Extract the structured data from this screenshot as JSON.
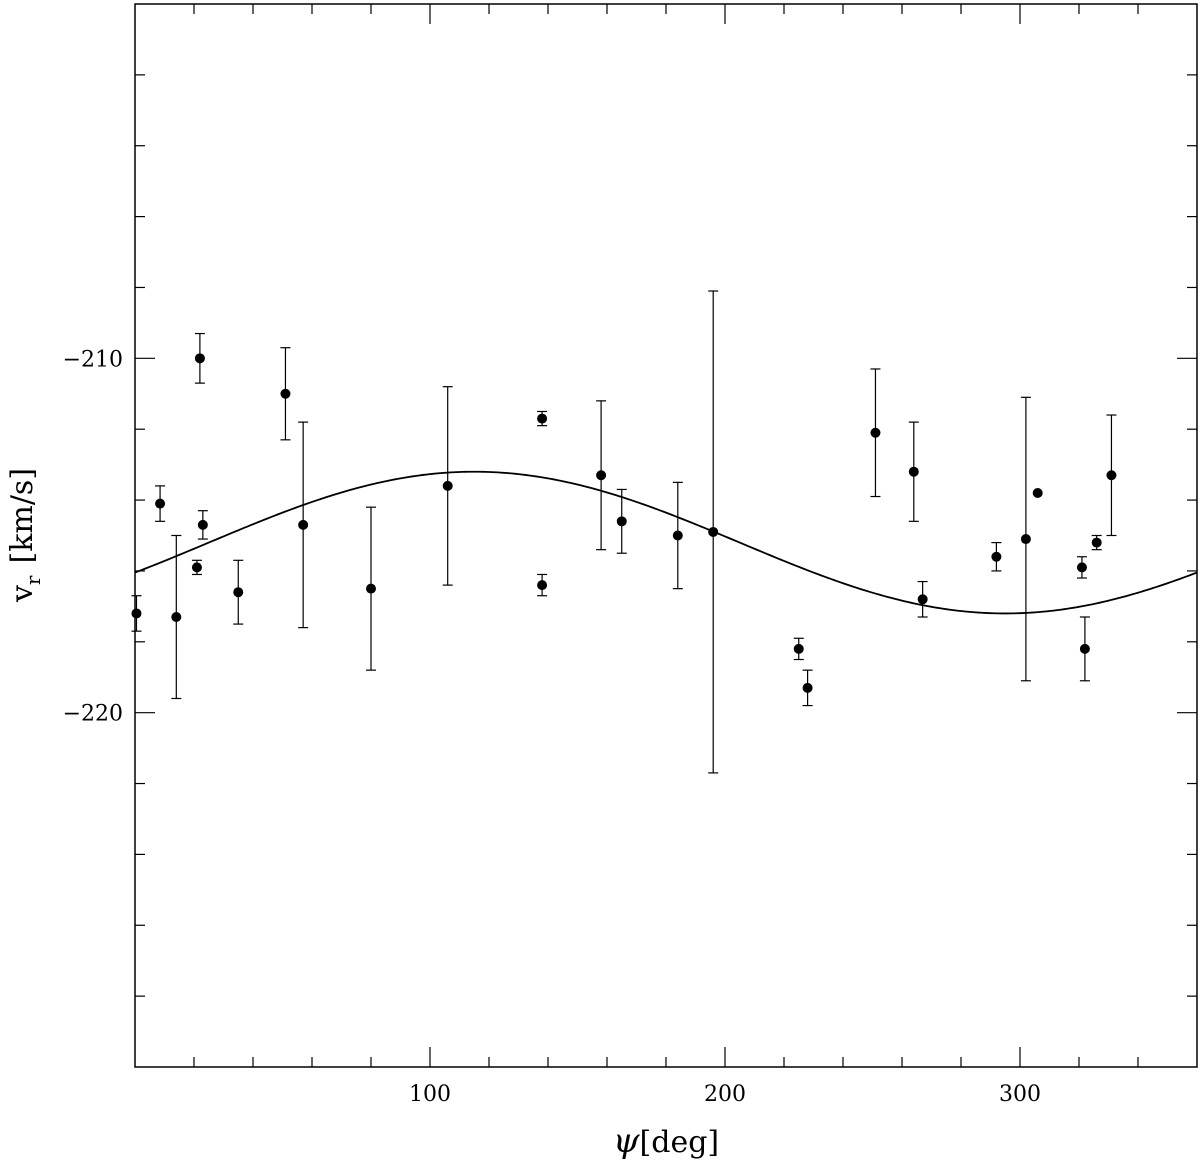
{
  "chart_data": {
    "type": "scatter",
    "title": "",
    "xlabel": "ψ[deg]",
    "ylabel": "v_r [km/s]",
    "ylabel_main": "v",
    "ylabel_sub": "r",
    "ylabel_unit": "[km/s]",
    "xlabel_symbol": "ψ",
    "xlabel_unit": "[deg]",
    "xlim": [
      0,
      360
    ],
    "ylim": [
      -230,
      -200
    ],
    "x_major_ticks": [
      100,
      200,
      300
    ],
    "x_minor_step": 20,
    "y_major_ticks": [
      -210,
      -220
    ],
    "y_minor_step": 2,
    "x_tick_labels": [
      "100",
      "200",
      "300"
    ],
    "y_tick_labels": [
      "−210",
      "−220"
    ],
    "grid": false,
    "series": [
      {
        "kind": "points_with_errorbars",
        "points": [
          {
            "x": 0.5,
            "y": -217.2,
            "err": 0.5
          },
          {
            "x": 8.5,
            "y": -214.1,
            "err": 0.5
          },
          {
            "x": 14,
            "y": -217.3,
            "err": 2.3
          },
          {
            "x": 21,
            "y": -215.9,
            "err": 0.2
          },
          {
            "x": 22,
            "y": -210.0,
            "err": 0.7
          },
          {
            "x": 23,
            "y": -214.7,
            "err": 0.4
          },
          {
            "x": 35,
            "y": -216.6,
            "err": 0.9
          },
          {
            "x": 51,
            "y": -211.0,
            "err": 1.3
          },
          {
            "x": 57,
            "y": -214.7,
            "err": 2.9
          },
          {
            "x": 80,
            "y": -216.5,
            "err": 2.3
          },
          {
            "x": 106,
            "y": -213.6,
            "err": 2.8
          },
          {
            "x": 138,
            "y": -211.7,
            "err": 0.2
          },
          {
            "x": 138,
            "y": -216.4,
            "err": 0.3
          },
          {
            "x": 158,
            "y": -213.3,
            "err": 2.1
          },
          {
            "x": 165,
            "y": -214.6,
            "err": 0.9
          },
          {
            "x": 184,
            "y": -215.0,
            "err": 1.5
          },
          {
            "x": 196,
            "y": -214.9,
            "err": 6.8
          },
          {
            "x": 225,
            "y": -218.2,
            "err": 0.3
          },
          {
            "x": 228,
            "y": -219.3,
            "err": 0.5
          },
          {
            "x": 251,
            "y": -212.1,
            "err": 1.8
          },
          {
            "x": 264,
            "y": -213.2,
            "err": 1.4
          },
          {
            "x": 267,
            "y": -216.8,
            "err": 0.5
          },
          {
            "x": 292,
            "y": -215.6,
            "err": 0.4
          },
          {
            "x": 302,
            "y": -215.1,
            "err": 4.0
          },
          {
            "x": 306,
            "y": -213.8,
            "err": 0
          },
          {
            "x": 321,
            "y": -215.9,
            "err": 0.3
          },
          {
            "x": 322,
            "y": -218.2,
            "err": 0.9
          },
          {
            "x": 326,
            "y": -215.2,
            "err": 0.2
          },
          {
            "x": 331,
            "y": -213.3,
            "err": 1.7
          }
        ]
      },
      {
        "kind": "model_curve",
        "function": "mean + amplitude * sin((x - phase) deg)",
        "mean": -215.2,
        "amplitude": 2.0,
        "phase": 25
      }
    ]
  }
}
